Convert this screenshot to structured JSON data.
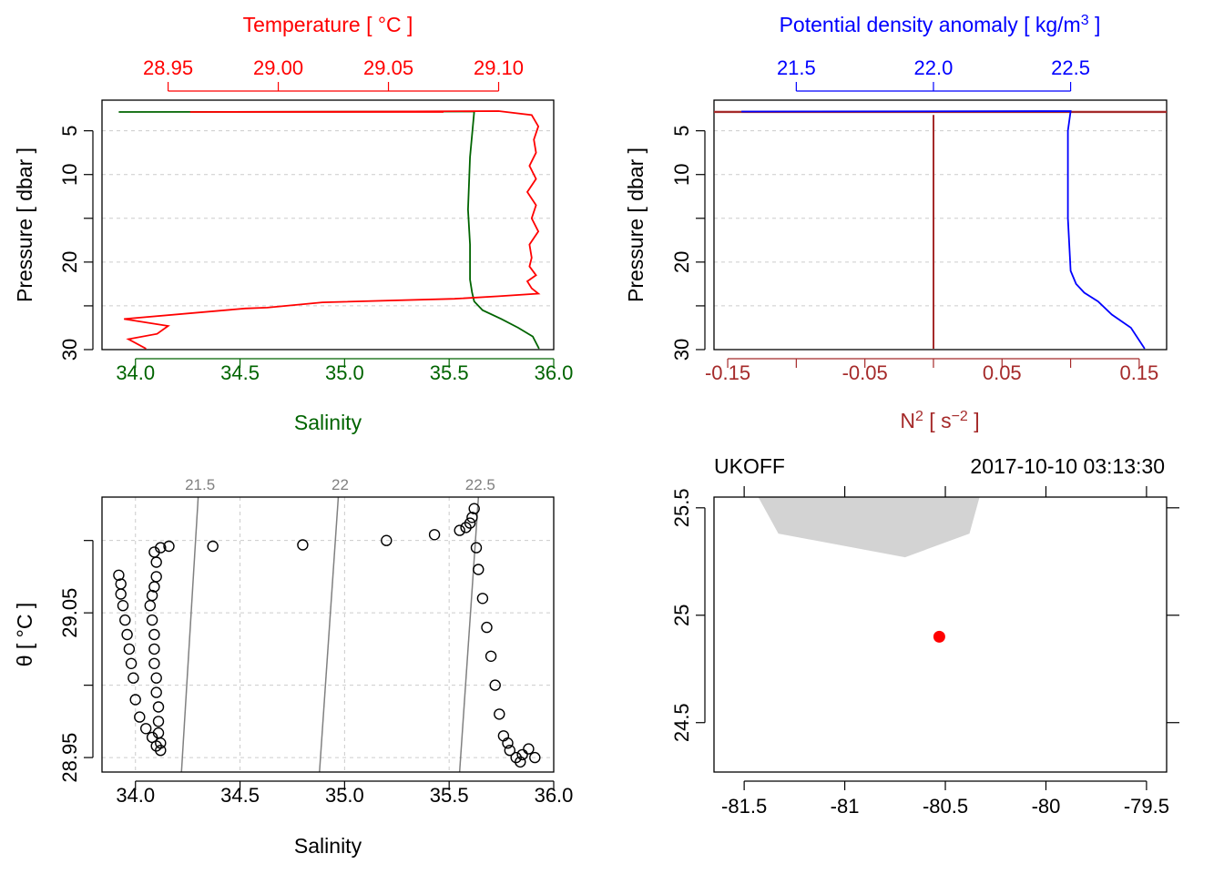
{
  "chart_data": [
    {
      "panel": "temperature-salinity-profile",
      "type": "line",
      "title": "Temperature [ °C ]",
      "xlabel": "Salinity",
      "ylabel": "Pressure [ dbar ]",
      "top_axis": {
        "label": "Temperature [ °C ]",
        "range": [
          28.92,
          29.125
        ],
        "ticks": [
          28.95,
          29.0,
          29.05,
          29.1
        ],
        "tick_labels": [
          "28.95",
          "29.00",
          "29.05",
          "29.10"
        ],
        "color": "#ff0000"
      },
      "bottom_axis": {
        "label": "Salinity",
        "range": [
          33.84,
          36.0
        ],
        "ticks": [
          34.0,
          34.5,
          35.0,
          35.5,
          36.0
        ],
        "tick_labels": [
          "34.0",
          "34.5",
          "35.0",
          "35.5",
          "36.0"
        ],
        "color": "#006400"
      },
      "y_axis": {
        "range": [
          30.0,
          1.5
        ],
        "ticks": [
          5,
          10,
          15,
          20,
          25,
          30
        ],
        "tick_labels": [
          "5",
          "10",
          "",
          "20",
          "",
          "30"
        ]
      },
      "series": [
        {
          "name": "Temperature",
          "color": "#ff0000",
          "x": [
            29.075,
            28.96,
            29.05,
            29.1,
            29.115,
            29.118,
            29.116,
            29.117,
            29.114,
            29.117,
            29.113,
            29.117,
            29.115,
            29.118,
            29.114,
            29.115,
            29.114,
            29.117,
            29.113,
            29.115,
            29.118,
            29.1,
            29.08,
            29.02,
            28.995,
            28.985,
            28.93,
            28.95,
            28.945,
            28.932,
            28.94
          ],
          "y": [
            2.85,
            2.85,
            2.8,
            2.75,
            3.2,
            4.5,
            6.0,
            7.5,
            9.0,
            10.5,
            12.0,
            13.5,
            15.0,
            16.5,
            18.0,
            19.5,
            20.5,
            21.5,
            22.2,
            23.0,
            23.6,
            23.9,
            24.2,
            24.6,
            25.2,
            25.3,
            26.5,
            27.3,
            28.2,
            28.8,
            29.9
          ]
        },
        {
          "name": "Salinity",
          "color": "#006400",
          "x": [
            33.92,
            35.62,
            35.6,
            35.59,
            35.6,
            35.6,
            35.61,
            35.62,
            35.66,
            35.75,
            35.83,
            35.9,
            35.93
          ],
          "y": [
            2.85,
            2.8,
            8.0,
            14.0,
            18.0,
            22.0,
            23.5,
            24.5,
            25.5,
            26.5,
            27.5,
            28.5,
            29.9
          ]
        }
      ]
    },
    {
      "panel": "density-n2-profile",
      "type": "line",
      "title": "Potential density anomaly [ kg/m³ ]",
      "xlabel": "N² [ s⁻² ]",
      "ylabel": "Pressure [ dbar ]",
      "top_axis": {
        "label": "Potential density anomaly [ kg/m³ ]",
        "range": [
          21.2,
          22.85
        ],
        "ticks": [
          21.5,
          22.0,
          22.5
        ],
        "tick_labels": [
          "21.5",
          "22.0",
          "22.5"
        ],
        "color": "#0000ff"
      },
      "bottom_axis": {
        "label": "N² [ s⁻² ]",
        "range": [
          -0.16,
          0.17
        ],
        "ticks": [
          -0.15,
          -0.1,
          -0.05,
          0.0,
          0.05,
          0.1,
          0.15
        ],
        "tick_labels": [
          "-0.15",
          "",
          "-0.05",
          "",
          "0.05",
          "",
          "0.15"
        ],
        "color": "#a52a2a"
      },
      "y_axis": {
        "range": [
          30.0,
          1.5
        ],
        "ticks": [
          5,
          10,
          15,
          20,
          25,
          30
        ],
        "tick_labels": [
          "5",
          "10",
          "",
          "20",
          "",
          "30"
        ]
      },
      "series": [
        {
          "name": "Potential density anomaly",
          "color": "#0000ff",
          "x": [
            21.3,
            22.5,
            22.49,
            22.49,
            22.5,
            22.52,
            22.55,
            22.6,
            22.65,
            22.72,
            22.77
          ],
          "y": [
            2.8,
            2.75,
            5.0,
            15.0,
            21.0,
            22.5,
            23.5,
            24.5,
            26.0,
            27.5,
            29.9
          ]
        },
        {
          "name": "N2",
          "color": "#a52a2a",
          "x": [
            0.0,
            0.0,
            0.0,
            0.0,
            0.0
          ],
          "y": [
            3.2,
            10.0,
            20.0,
            25.2,
            29.9
          ]
        }
      ]
    },
    {
      "panel": "ts-diagram",
      "type": "scatter",
      "xlabel": "Salinity",
      "ylabel": "θ [ °C ]",
      "x_axis": {
        "range": [
          33.84,
          36.0
        ],
        "ticks": [
          34.0,
          34.5,
          35.0,
          35.5,
          36.0
        ],
        "tick_labels": [
          "34.0",
          "34.5",
          "35.0",
          "35.5",
          "36.0"
        ]
      },
      "y_axis": {
        "range": [
          28.94,
          29.13
        ],
        "ticks": [
          28.95,
          29.0,
          29.05,
          29.1
        ],
        "tick_labels": [
          "28.95",
          "",
          "29.05",
          ""
        ]
      },
      "isopycnals": [
        {
          "label": "21.5",
          "x": [
            34.22,
            34.3
          ]
        },
        {
          "label": "22",
          "x": [
            34.88,
            34.97
          ]
        },
        {
          "label": "22.5",
          "x": [
            35.55,
            35.64
          ]
        }
      ],
      "points": [
        [
          33.92,
          29.076
        ],
        [
          33.93,
          29.07
        ],
        [
          33.93,
          29.063
        ],
        [
          33.94,
          29.055
        ],
        [
          33.95,
          29.045
        ],
        [
          33.96,
          29.035
        ],
        [
          33.97,
          29.025
        ],
        [
          33.98,
          29.015
        ],
        [
          33.99,
          29.005
        ],
        [
          34.0,
          28.99
        ],
        [
          34.02,
          28.978
        ],
        [
          34.05,
          28.97
        ],
        [
          34.08,
          28.964
        ],
        [
          34.1,
          28.958
        ],
        [
          34.12,
          28.955
        ],
        [
          34.12,
          28.96
        ],
        [
          34.11,
          28.967
        ],
        [
          34.11,
          28.975
        ],
        [
          34.11,
          28.985
        ],
        [
          34.1,
          28.995
        ],
        [
          34.1,
          29.005
        ],
        [
          34.09,
          29.015
        ],
        [
          34.09,
          29.025
        ],
        [
          34.09,
          29.035
        ],
        [
          34.08,
          29.045
        ],
        [
          34.07,
          29.055
        ],
        [
          34.08,
          29.062
        ],
        [
          34.09,
          29.068
        ],
        [
          34.1,
          29.075
        ],
        [
          34.1,
          29.085
        ],
        [
          34.09,
          29.092
        ],
        [
          34.12,
          29.095
        ],
        [
          34.16,
          29.096
        ],
        [
          34.37,
          29.096
        ],
        [
          34.8,
          29.097
        ],
        [
          35.2,
          29.1
        ],
        [
          35.43,
          29.104
        ],
        [
          35.55,
          29.107
        ],
        [
          35.58,
          29.109
        ],
        [
          35.6,
          29.112
        ],
        [
          35.61,
          29.116
        ],
        [
          35.62,
          29.122
        ],
        [
          35.63,
          29.095
        ],
        [
          35.64,
          29.08
        ],
        [
          35.66,
          29.06
        ],
        [
          35.68,
          29.04
        ],
        [
          35.7,
          29.02
        ],
        [
          35.72,
          29.0
        ],
        [
          35.74,
          28.98
        ],
        [
          35.76,
          28.965
        ],
        [
          35.79,
          28.955
        ],
        [
          35.82,
          28.95
        ],
        [
          35.85,
          28.952
        ],
        [
          35.88,
          28.956
        ],
        [
          35.91,
          28.95
        ],
        [
          35.84,
          28.947
        ],
        [
          35.78,
          28.96
        ]
      ]
    },
    {
      "panel": "map",
      "type": "map",
      "station": "UKOFF",
      "datetime": "2017-10-10 03:13:30",
      "x_axis": {
        "range": [
          -81.65,
          -79.4
        ],
        "ticks": [
          -81.5,
          -81.0,
          -80.5,
          -80.0,
          -79.5
        ],
        "tick_labels": [
          "-81.5",
          "-81",
          "-80.5",
          "-80",
          "-79.5"
        ]
      },
      "y_axis": {
        "range": [
          24.27,
          25.55
        ],
        "ticks": [
          24.5,
          25.0,
          25.5
        ],
        "tick_labels": [
          "24.5",
          "25",
          "25.5"
        ]
      },
      "land": {
        "lon": [
          -81.43,
          -81.33,
          -80.7,
          -80.38,
          -80.33,
          -81.6
        ],
        "lat": [
          25.55,
          25.38,
          25.27,
          25.38,
          25.55,
          25.55
        ],
        "color": "#d3d3d3"
      },
      "station_point": {
        "lon": [
          -80.53
        ],
        "lat": [
          24.9
        ],
        "color": "#ff0000"
      }
    }
  ]
}
